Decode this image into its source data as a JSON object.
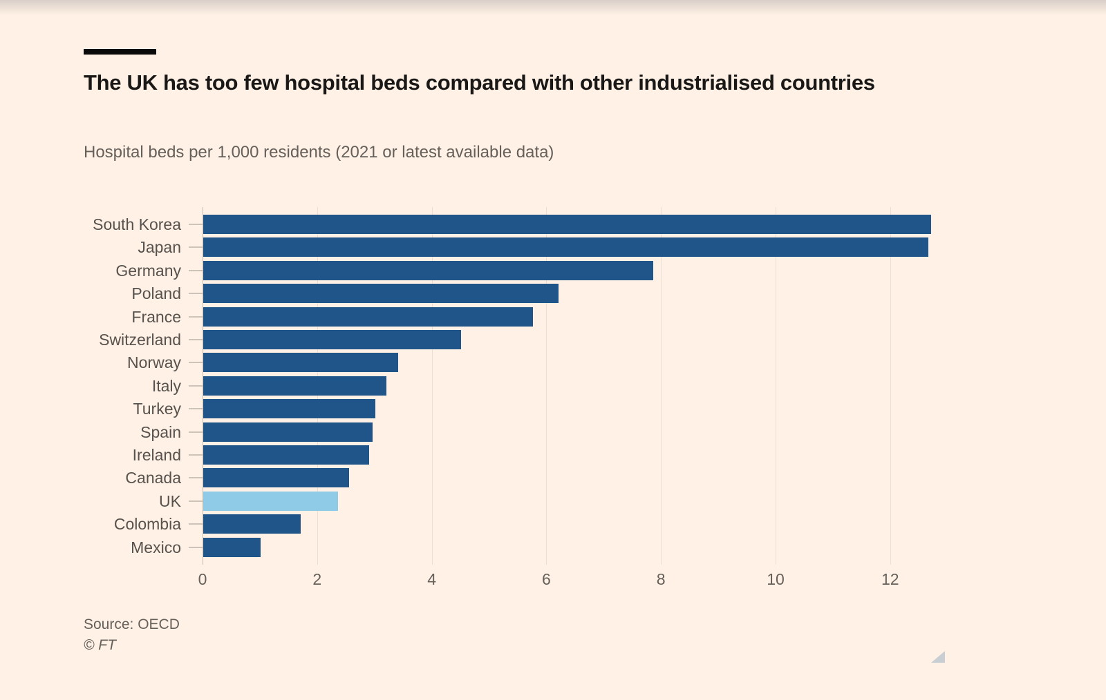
{
  "header": {
    "title": "The UK has too few hospital beds compared with other industrialised countries",
    "subtitle": "Hospital beds per 1,000 residents (2021 or latest available data)"
  },
  "chart_data": {
    "type": "bar",
    "orientation": "horizontal",
    "title": "The UK has too few hospital beds compared with other industrialised countries",
    "subtitle": "Hospital beds per 1,000 residents (2021 or latest available data)",
    "categories": [
      "South Korea",
      "Japan",
      "Germany",
      "Poland",
      "France",
      "Switzerland",
      "Norway",
      "Italy",
      "Turkey",
      "Spain",
      "Ireland",
      "Canada",
      "UK",
      "Colombia",
      "Mexico"
    ],
    "values": [
      12.7,
      12.65,
      7.85,
      6.2,
      5.75,
      4.5,
      3.4,
      3.2,
      3.0,
      2.95,
      2.9,
      2.55,
      2.35,
      1.7,
      1.0
    ],
    "highlight_category": "UK",
    "bar_color": "#20558A",
    "highlight_color": "#8FCAE6",
    "x_ticks": [
      0,
      2,
      4,
      6,
      8,
      10,
      12
    ],
    "xlim": [
      0,
      14.25
    ],
    "grid": true,
    "legend": "none",
    "xlabel": "",
    "ylabel": ""
  },
  "footer": {
    "source": "Source: OECD",
    "copyright": "© FT"
  },
  "colors": {
    "background": "#FFF1E5",
    "title_text": "#1a1817",
    "muted_text": "#66605b",
    "gridline": "#eadfd3"
  }
}
